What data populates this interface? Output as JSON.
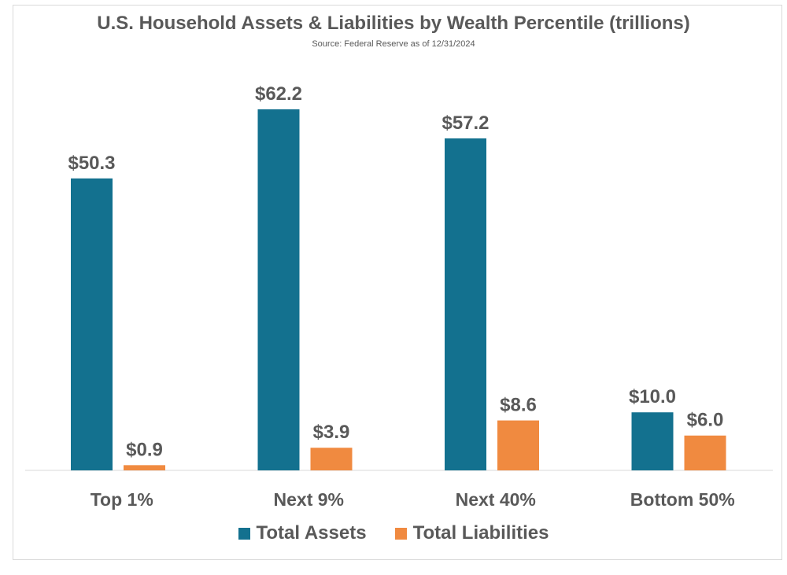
{
  "chart_data": {
    "type": "bar",
    "title": "U.S. Household Assets & Liabilities by Wealth Percentile (trillions)",
    "subtitle": "Source: Federal Reserve as of 12/31/2024",
    "categories": [
      "Top 1%",
      "Next 9%",
      "Next 40%",
      "Bottom 50%"
    ],
    "series": [
      {
        "name": "Total Assets",
        "color": "#13718f",
        "values": [
          50.3,
          62.2,
          57.2,
          10.0
        ],
        "labels": [
          "$50.3",
          "$62.2",
          "$57.2",
          "$10.0"
        ]
      },
      {
        "name": "Total Liabilities",
        "color": "#f08a40",
        "values": [
          0.9,
          3.9,
          8.6,
          6.0
        ],
        "labels": [
          "$0.9",
          "$3.9",
          "$8.6",
          "$6.0"
        ]
      }
    ],
    "xlabel": "",
    "ylabel": "",
    "ylim": [
      0,
      62.2
    ],
    "grid": false,
    "legend_position": "bottom"
  }
}
